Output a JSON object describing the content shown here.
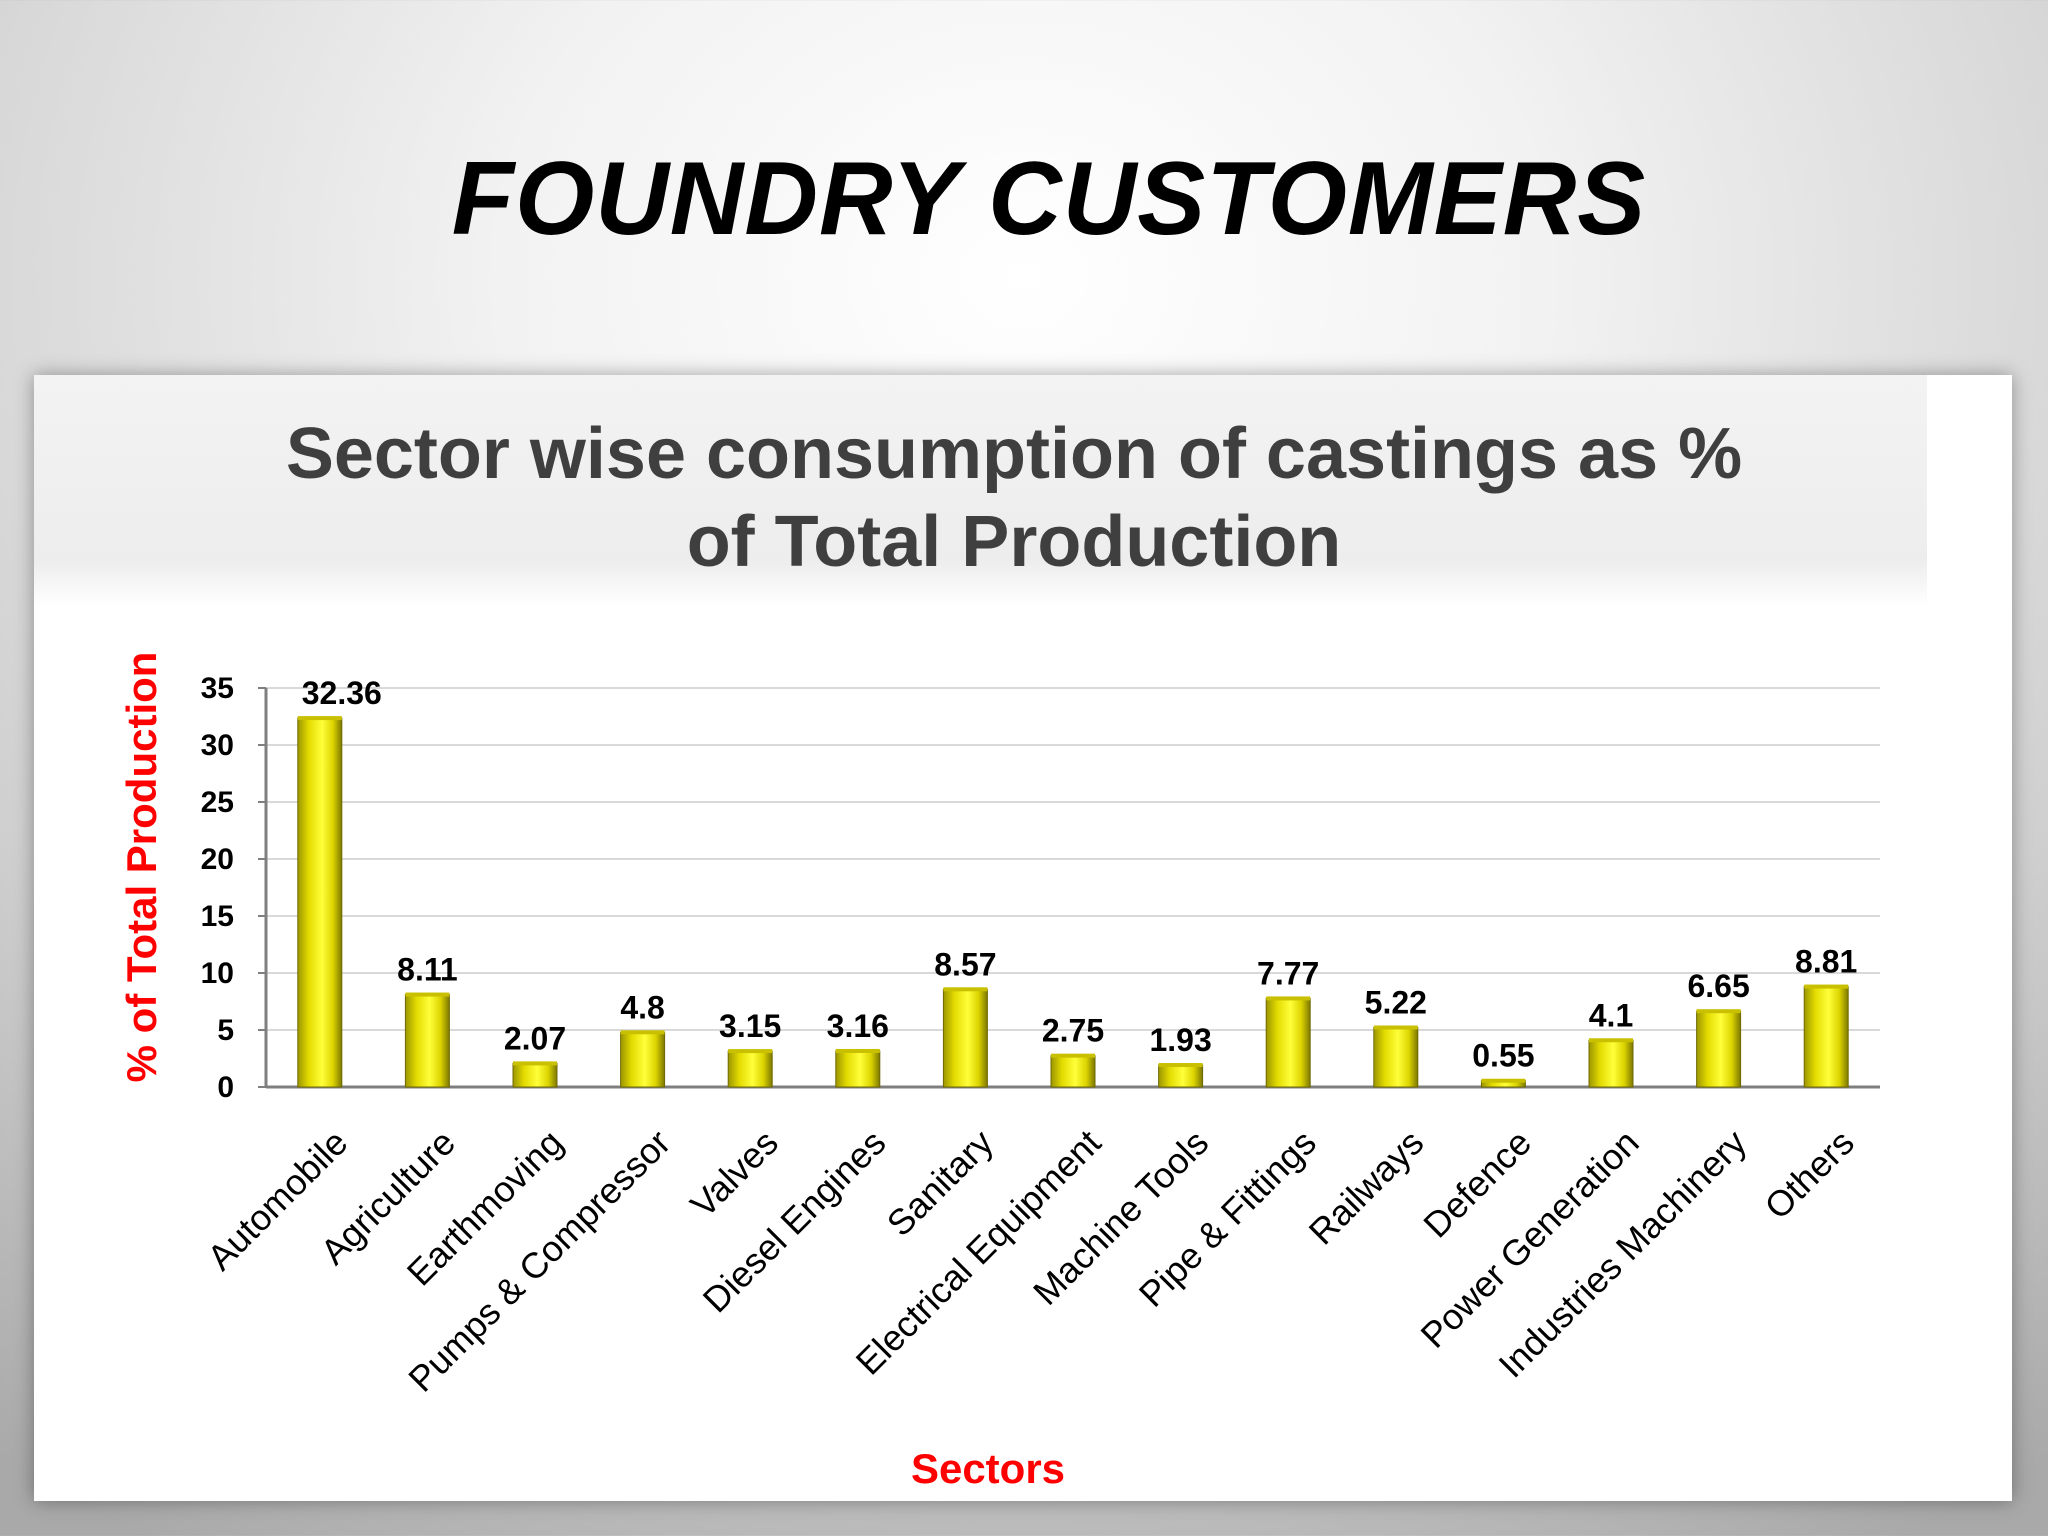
{
  "slide": {
    "title": "FOUNDRY CUSTOMERS"
  },
  "colors": {
    "bar": "#e8e000",
    "bar_dark": "#8f8a00",
    "axis_label": "#ff0000",
    "grid": "#d9d9d9"
  },
  "chart_data": {
    "type": "bar",
    "title": "Sector wise consumption of castings as % of Total Production",
    "title_line1": "Sector wise consumption of castings as %",
    "title_line2": "of Total Production",
    "xlabel": "Sectors",
    "ylabel": "% of Total Production",
    "ylim": [
      0,
      35
    ],
    "yticks": [
      0,
      5,
      10,
      15,
      20,
      25,
      30,
      35
    ],
    "grid": true,
    "categories": [
      "Automobile",
      "Agriculture",
      "Earthmoving",
      "Pumps & Compressor",
      "Valves",
      "Diesel Engines",
      "Sanitary",
      "Electrical Equipment",
      "Machine Tools",
      "Pipe & Fittings",
      "Railways",
      "Defence",
      "Power Generation",
      "Industries Machinery",
      "Others"
    ],
    "values": [
      32.36,
      8.11,
      2.07,
      4.8,
      3.15,
      3.16,
      8.57,
      2.75,
      1.93,
      7.77,
      5.22,
      0.55,
      4.1,
      6.65,
      8.81
    ],
    "labels": [
      "32.36",
      "8.11",
      "2.07",
      "4.8",
      "3.15",
      "3.16",
      "8.57",
      "2.75",
      "1.93",
      "7.77",
      "5.22",
      "0.55",
      "4.1",
      "6.65",
      "8.81"
    ]
  }
}
